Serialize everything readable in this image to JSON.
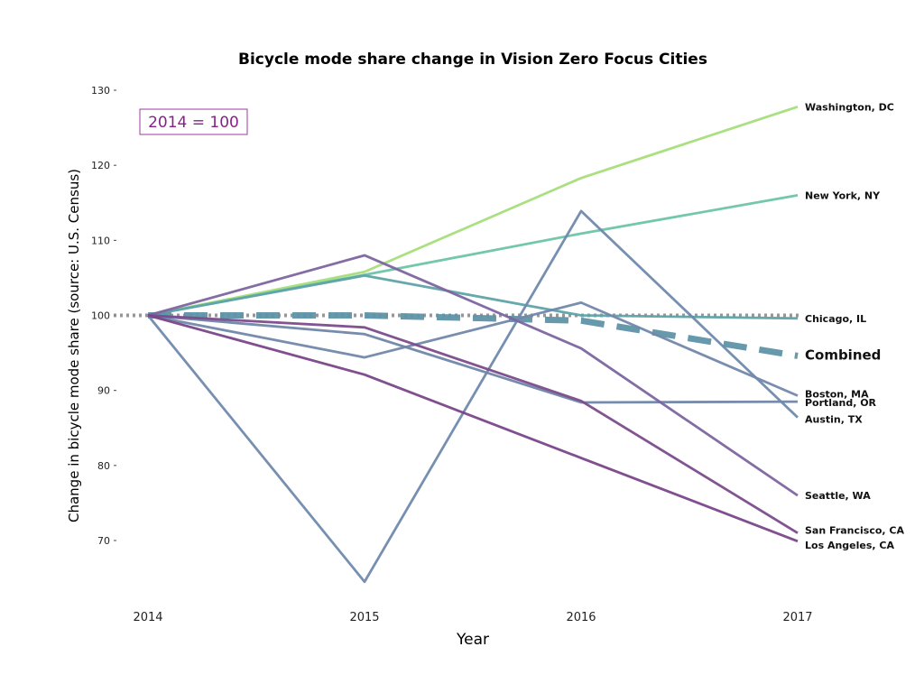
{
  "chart_data": {
    "type": "line",
    "title": "Bicycle mode share change in Vision Zero Focus Cities",
    "xlabel": "Year",
    "ylabel": "Change in bicycle mode share (source: U.S. Census)",
    "annotation": "2014 = 100",
    "x": [
      2014,
      2015,
      2016,
      2017
    ],
    "xlim": [
      2014,
      2017
    ],
    "ylim": [
      62,
      131
    ],
    "yticks": [
      70,
      80,
      90,
      100,
      110,
      120,
      130
    ],
    "grid": false,
    "reference_line": {
      "y": 100,
      "color": "#8c8c8c"
    },
    "series": [
      {
        "name": "Washington, DC",
        "values": [
          100,
          105.8,
          118.3,
          127.8
        ],
        "color": "#a6de7a"
      },
      {
        "name": "New York, NY",
        "values": [
          100,
          105.4,
          110.9,
          116.0
        ],
        "color": "#6cc4a6"
      },
      {
        "name": "Chicago, IL",
        "values": [
          100,
          105.3,
          100.0,
          99.6
        ],
        "color": "#5fa3a8"
      },
      {
        "name": "Combined",
        "values": [
          100,
          100.0,
          99.3,
          94.6
        ],
        "color": "#5e93a6"
      },
      {
        "name": "Boston, MA",
        "values": [
          100,
          94.4,
          101.7,
          89.3
        ],
        "color": "#7288ab"
      },
      {
        "name": "Portland, OR",
        "values": [
          100,
          97.5,
          88.4,
          88.5
        ],
        "color": "#6f86a8"
      },
      {
        "name": "Austin, TX",
        "values": [
          100,
          64.5,
          113.9,
          86.4
        ],
        "color": "#7089ac"
      },
      {
        "name": "Seattle, WA",
        "values": [
          100,
          108.0,
          95.6,
          76.0
        ],
        "color": "#7d64a0"
      },
      {
        "name": "San Francisco, CA",
        "values": [
          100,
          98.4,
          88.6,
          71.0
        ],
        "color": "#7b4c8c"
      },
      {
        "name": "Los Angeles, CA",
        "values": [
          100,
          92.1,
          81.0,
          69.9
        ],
        "color": "#7a4489"
      }
    ]
  }
}
